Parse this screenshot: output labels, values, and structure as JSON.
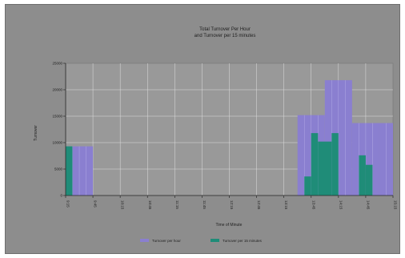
{
  "chart_data": {
    "type": "bar",
    "title_lines": [
      "Total Turnover Per Hour",
      "and Turnover per 15 minutes"
    ],
    "xlabel": "Time of Minute",
    "ylabel": "Turnover",
    "y_ticks": [
      "25000",
      "20000",
      "15000",
      "10000",
      "5000",
      "0"
    ],
    "ylim": [
      0,
      25000
    ],
    "x_ticks": [
      "9:15",
      "9:45",
      "10:15",
      "10:45",
      "11:15",
      "11:45",
      "12:15",
      "12:45",
      "13:15",
      "13:45",
      "14:15",
      "14:45",
      "15:15"
    ],
    "grid": true,
    "legend_position": "bottom",
    "series": [
      {
        "name": "Turnover per hour",
        "color": "#8a7fd0",
        "bars": [
          {
            "x_start": 0,
            "x_end": 1,
            "value": 9300
          },
          {
            "x_start": 8.5,
            "x_end": 9.5,
            "value": 15200
          },
          {
            "x_start": 9.5,
            "x_end": 10.5,
            "value": 21800
          },
          {
            "x_start": 10.5,
            "x_end": 11.5,
            "value": 13700
          },
          {
            "x_start": 11.5,
            "x_end": 12,
            "value": 13700
          }
        ]
      },
      {
        "name": "Turnover per 15 minutes",
        "color": "#1f8c78",
        "bars": [
          {
            "x_start": 0,
            "x_end": 0.25,
            "value": 9300
          },
          {
            "x_start": 8.75,
            "x_end": 9,
            "value": 3600
          },
          {
            "x_start": 9,
            "x_end": 9.25,
            "value": 11800
          },
          {
            "x_start": 9.25,
            "x_end": 9.75,
            "value": 10200
          },
          {
            "x_start": 9.75,
            "x_end": 10,
            "value": 11800
          },
          {
            "x_start": 10.75,
            "x_end": 11,
            "value": 7600
          },
          {
            "x_start": 11,
            "x_end": 11.25,
            "value": 5800
          }
        ]
      }
    ],
    "legend": [
      "Turnover per hour",
      "Turnover per 15 minutes"
    ]
  }
}
